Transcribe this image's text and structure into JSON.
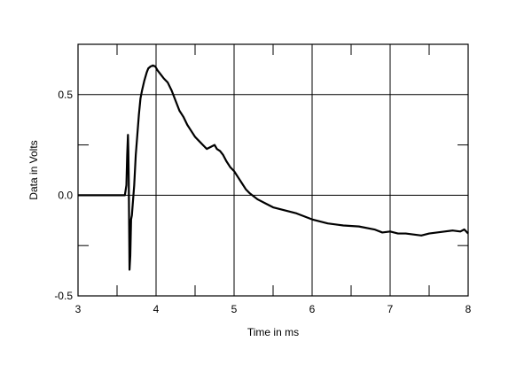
{
  "chart_data": {
    "type": "line",
    "xlabel": "Time in ms",
    "ylabel": "Data in Volts",
    "xlim": [
      3,
      8
    ],
    "ylim": [
      -0.5,
      0.75
    ],
    "x_ticks": [
      3,
      4,
      5,
      6,
      7,
      8
    ],
    "x_tick_labels": [
      "3",
      "4",
      "5",
      "6",
      "7",
      "8"
    ],
    "y_ticks": [
      -0.5,
      0.0,
      0.5
    ],
    "y_tick_labels": [
      "-0.5",
      "0.0",
      "0.5"
    ],
    "grid": true,
    "line_color": "#000000",
    "series": [
      {
        "x": [
          3.0,
          3.58,
          3.6,
          3.62,
          3.63,
          3.64,
          3.645,
          3.65,
          3.655,
          3.66,
          3.67,
          3.68,
          3.69,
          3.7,
          3.72,
          3.74,
          3.76,
          3.78,
          3.8,
          3.82,
          3.85,
          3.88,
          3.9,
          3.93,
          3.96,
          3.99,
          4.02,
          4.06,
          4.1,
          4.15,
          4.2,
          4.25,
          4.3,
          4.35,
          4.4,
          4.45,
          4.5,
          4.55,
          4.6,
          4.65,
          4.7,
          4.75,
          4.78,
          4.82,
          4.86,
          4.9,
          4.95,
          5.0,
          5.05,
          5.1,
          5.15,
          5.2,
          5.3,
          5.4,
          5.5,
          5.6,
          5.7,
          5.8,
          5.9,
          6.0,
          6.2,
          6.4,
          6.6,
          6.8,
          6.9,
          7.0,
          7.1,
          7.2,
          7.3,
          7.4,
          7.5,
          7.6,
          7.7,
          7.8,
          7.9,
          7.95,
          8.0
        ],
        "y": [
          0.0,
          0.0,
          0.0,
          0.05,
          0.2,
          0.3,
          0.22,
          0.08,
          -0.15,
          -0.37,
          -0.3,
          -0.12,
          -0.1,
          -0.05,
          0.05,
          0.2,
          0.3,
          0.4,
          0.48,
          0.52,
          0.57,
          0.61,
          0.63,
          0.64,
          0.645,
          0.64,
          0.62,
          0.6,
          0.58,
          0.56,
          0.52,
          0.47,
          0.42,
          0.39,
          0.35,
          0.32,
          0.29,
          0.27,
          0.25,
          0.23,
          0.24,
          0.25,
          0.23,
          0.22,
          0.2,
          0.17,
          0.14,
          0.12,
          0.09,
          0.06,
          0.03,
          0.01,
          -0.02,
          -0.04,
          -0.06,
          -0.07,
          -0.08,
          -0.09,
          -0.105,
          -0.12,
          -0.14,
          -0.15,
          -0.155,
          -0.17,
          -0.185,
          -0.18,
          -0.19,
          -0.19,
          -0.195,
          -0.2,
          -0.19,
          -0.185,
          -0.18,
          -0.175,
          -0.18,
          -0.17,
          -0.19
        ]
      }
    ]
  }
}
